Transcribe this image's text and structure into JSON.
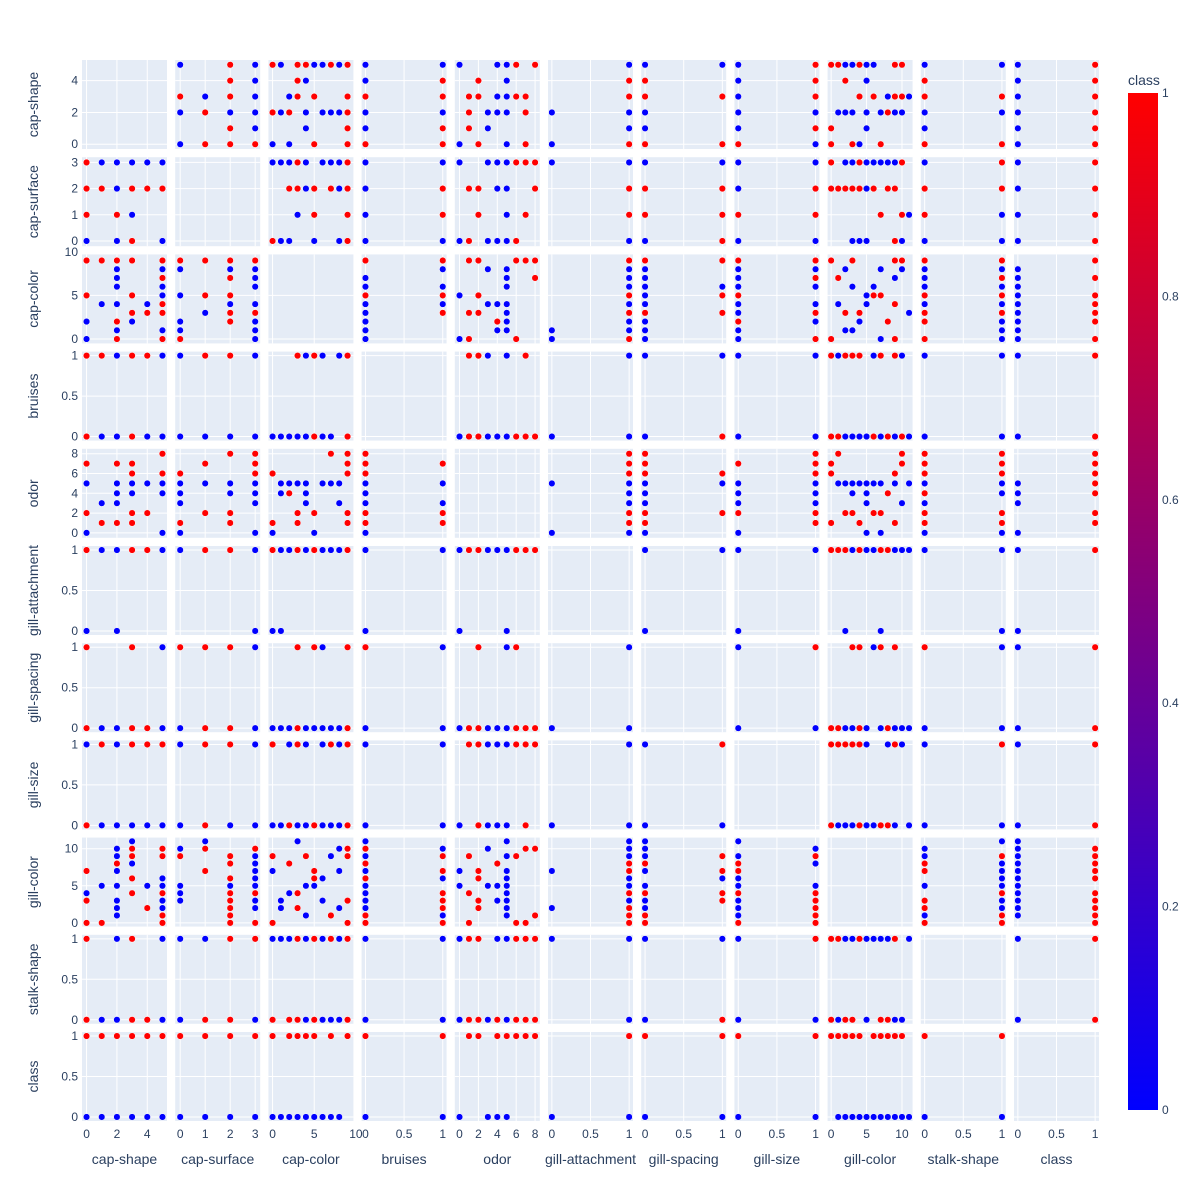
{
  "chart_data": {
    "type": "scatter",
    "variables": [
      {
        "name": "cap-shape",
        "ticks": [
          "0",
          "2",
          "4"
        ],
        "tick_values": [
          0,
          2,
          4
        ],
        "range": [
          -0.3,
          5.3
        ]
      },
      {
        "name": "cap-surface",
        "ticks": [
          "0",
          "1",
          "2",
          "3"
        ],
        "tick_values": [
          0,
          1,
          2,
          3
        ],
        "range": [
          -0.2,
          3.2
        ]
      },
      {
        "name": "cap-color",
        "ticks": [
          "0",
          "5",
          "10"
        ],
        "tick_values": [
          0,
          5,
          10
        ],
        "range": [
          -0.5,
          9.7
        ]
      },
      {
        "name": "bruises",
        "ticks": [
          "0",
          "0.5",
          "1"
        ],
        "tick_values": [
          0,
          0.5,
          1
        ],
        "range": [
          -0.05,
          1.05
        ]
      },
      {
        "name": "odor",
        "ticks": [
          "0",
          "2",
          "4",
          "6",
          "8"
        ],
        "tick_values": [
          0,
          2,
          4,
          6,
          8
        ],
        "range": [
          -0.5,
          8.5
        ]
      },
      {
        "name": "gill-attachment",
        "ticks": [
          "0",
          "0.5",
          "1"
        ],
        "tick_values": [
          0,
          0.5,
          1
        ],
        "range": [
          -0.05,
          1.05
        ]
      },
      {
        "name": "gill-spacing",
        "ticks": [
          "0",
          "0.5",
          "1"
        ],
        "tick_values": [
          0,
          0.5,
          1
        ],
        "range": [
          -0.05,
          1.05
        ]
      },
      {
        "name": "gill-size",
        "ticks": [
          "0",
          "0.5",
          "1"
        ],
        "tick_values": [
          0,
          0.5,
          1
        ],
        "range": [
          -0.05,
          1.05
        ]
      },
      {
        "name": "gill-color",
        "ticks": [
          "0",
          "5",
          "10"
        ],
        "tick_values": [
          0,
          5,
          10
        ],
        "range": [
          -0.5,
          11.5
        ]
      },
      {
        "name": "stalk-shape",
        "ticks": [
          "0",
          "0.5",
          "1"
        ],
        "tick_values": [
          0,
          0.5,
          1
        ],
        "range": [
          -0.05,
          1.05
        ]
      },
      {
        "name": "class",
        "ticks": [
          "0",
          "0.5",
          "1"
        ],
        "tick_values": [
          0,
          0.5,
          1
        ],
        "range": [
          -0.05,
          1.05
        ]
      }
    ],
    "rows": [
      [
        5,
        2,
        4,
        1,
        5,
        1,
        0,
        1,
        9,
        1,
        1
      ],
      [
        5,
        3,
        9,
        0,
        8,
        1,
        0,
        1,
        10,
        0,
        1
      ],
      [
        5,
        3,
        3,
        0,
        5,
        1,
        1,
        0,
        4,
        1,
        1
      ],
      [
        5,
        2,
        8,
        1,
        5,
        1,
        0,
        0,
        2,
        0,
        0
      ],
      [
        5,
        0,
        5,
        0,
        0,
        1,
        0,
        0,
        5,
        0,
        0
      ],
      [
        5,
        3,
        0,
        0,
        6,
        1,
        0,
        1,
        0,
        1,
        1
      ],
      [
        3,
        3,
        9,
        1,
        7,
        1,
        0,
        1,
        10,
        0,
        1
      ],
      [
        3,
        2,
        5,
        0,
        2,
        1,
        1,
        0,
        6,
        1,
        1
      ],
      [
        3,
        3,
        2,
        0,
        4,
        1,
        0,
        1,
        8,
        1,
        0
      ],
      [
        3,
        1,
        3,
        0,
        5,
        1,
        0,
        0,
        11,
        1,
        0
      ],
      [
        2,
        3,
        8,
        1,
        5,
        1,
        0,
        0,
        7,
        1,
        0
      ],
      [
        2,
        2,
        2,
        0,
        4,
        1,
        0,
        0,
        8,
        0,
        1
      ],
      [
        2,
        1,
        9,
        1,
        7,
        1,
        0,
        1,
        10,
        0,
        1
      ],
      [
        2,
        2,
        4,
        1,
        5,
        1,
        0,
        0,
        1,
        0,
        0
      ],
      [
        2,
        3,
        6,
        0,
        5,
        1,
        0,
        1,
        3,
        0,
        0
      ],
      [
        2,
        0,
        0,
        0,
        1,
        1,
        0,
        1,
        9,
        0,
        1
      ],
      [
        1,
        2,
        9,
        1,
        1,
        1,
        0,
        1,
        0,
        0,
        1
      ],
      [
        1,
        3,
        4,
        0,
        3,
        1,
        0,
        0,
        5,
        0,
        0
      ],
      [
        0,
        3,
        0,
        0,
        0,
        0,
        0,
        0,
        7,
        1,
        0
      ],
      [
        0,
        2,
        9,
        1,
        2,
        1,
        1,
        1,
        3,
        0,
        1
      ],
      [
        0,
        0,
        2,
        0,
        5,
        1,
        0,
        1,
        4,
        1,
        0
      ],
      [
        4,
        3,
        4,
        0,
        5,
        1,
        0,
        0,
        5,
        0,
        0
      ],
      [
        4,
        2,
        3,
        1,
        2,
        1,
        0,
        1,
        2,
        0,
        1
      ],
      [
        3,
        0,
        9,
        0,
        6,
        1,
        1,
        1,
        9,
        0,
        1
      ],
      [
        2,
        3,
        1,
        0,
        5,
        0,
        0,
        0,
        2,
        1,
        0
      ],
      [
        5,
        2,
        7,
        0,
        8,
        1,
        0,
        1,
        1,
        1,
        1
      ],
      [
        2,
        2,
        4,
        0,
        4,
        1,
        0,
        1,
        5,
        1,
        0
      ],
      [
        0,
        1,
        5,
        1,
        2,
        1,
        1,
        0,
        7,
        0,
        1
      ],
      [
        3,
        2,
        3,
        1,
        1,
        1,
        0,
        1,
        4,
        1,
        1
      ],
      [
        5,
        3,
        6,
        1,
        5,
        1,
        1,
        0,
        6,
        1,
        0
      ],
      [
        2,
        0,
        8,
        1,
        3,
        1,
        0,
        1,
        10,
        0,
        0
      ],
      [
        0,
        3,
        9,
        0,
        7,
        1,
        0,
        0,
        0,
        1,
        1
      ],
      [
        2,
        3,
        7,
        0,
        5,
        1,
        0,
        0,
        9,
        0,
        0
      ],
      [
        5,
        0,
        1,
        0,
        4,
        1,
        0,
        0,
        3,
        1,
        0
      ]
    ],
    "colorscale": [
      "#0000ff",
      "#ff0000"
    ],
    "colorbar_title": "class",
    "colorbar_ticks": [
      "0",
      "0.2",
      "0.4",
      "0.6",
      "0.8",
      "1"
    ],
    "marker_color_variable": "class"
  }
}
